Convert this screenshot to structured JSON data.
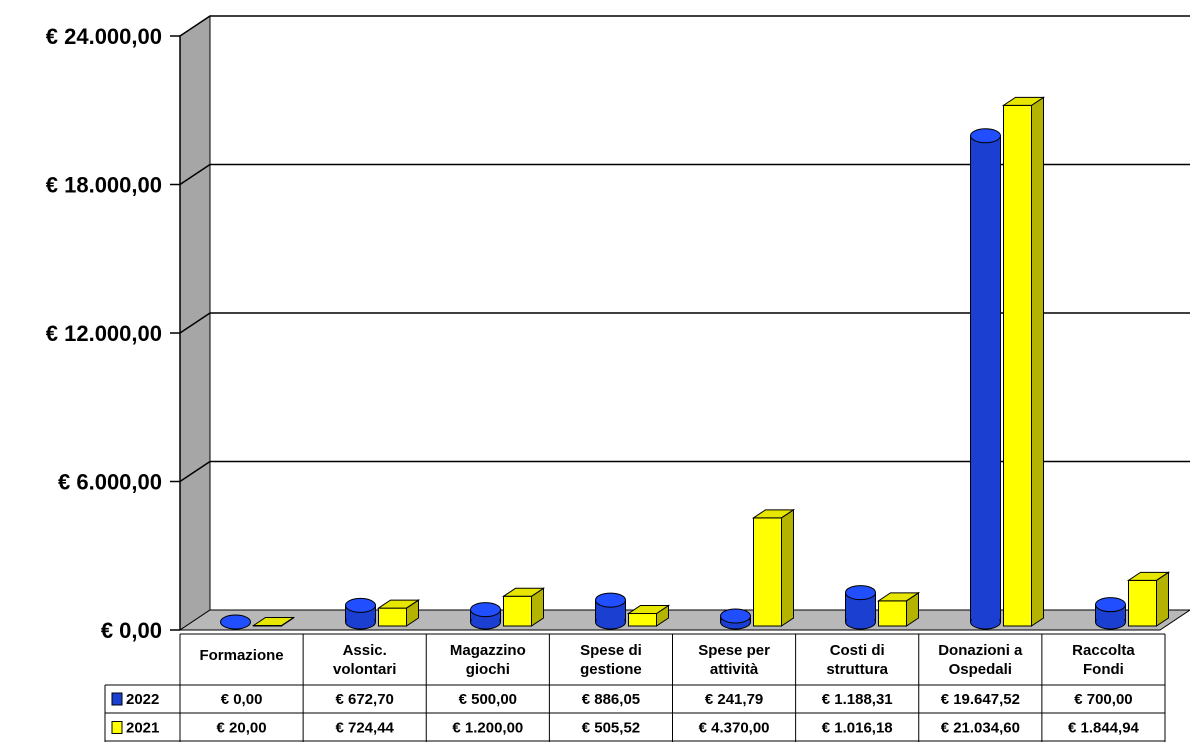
{
  "chart_data": {
    "type": "bar",
    "title": "",
    "xlabel": "",
    "ylabel": "",
    "ylim": [
      0,
      24000
    ],
    "yticks": [
      0,
      6000,
      12000,
      18000,
      24000
    ],
    "ytick_labels": [
      "€ 0,00",
      "€ 6.000,00",
      "€ 12.000,00",
      "€ 18.000,00",
      "€ 24.000,00"
    ],
    "categories": [
      [
        "Formazione"
      ],
      [
        "Assic.",
        "volontari"
      ],
      [
        "Magazzino",
        "giochi"
      ],
      [
        "Spese di",
        "gestione"
      ],
      [
        "Spese per",
        "attività"
      ],
      [
        "Costi di",
        "struttura"
      ],
      [
        "Donazioni a",
        "Ospedali"
      ],
      [
        "Raccolta",
        "Fondi"
      ]
    ],
    "grid": true,
    "legend": "in data table (left)",
    "series": [
      {
        "name": "2022",
        "shape": "cylinder",
        "color": "#1a3fd1",
        "values": [
          0,
          672.7,
          500.0,
          886.05,
          241.79,
          1188.31,
          19647.52,
          700.0
        ],
        "labels": [
          "€ 0,00",
          "€ 672,70",
          "€ 500,00",
          "€ 886,05",
          "€ 241,79",
          "€ 1.188,31",
          "€ 19.647,52",
          "€ 700,00"
        ]
      },
      {
        "name": "2021",
        "shape": "box",
        "color": "#ffff00",
        "values": [
          20.0,
          724.44,
          1200.0,
          505.52,
          4370.0,
          1016.18,
          21034.6,
          1844.94
        ],
        "labels": [
          "€ 20,00",
          "€ 724,44",
          "€ 1.200,00",
          "€ 505,52",
          "€ 4.370,00",
          "€ 1.016,18",
          "€ 21.034,60",
          "€ 1.844,94"
        ]
      }
    ]
  }
}
